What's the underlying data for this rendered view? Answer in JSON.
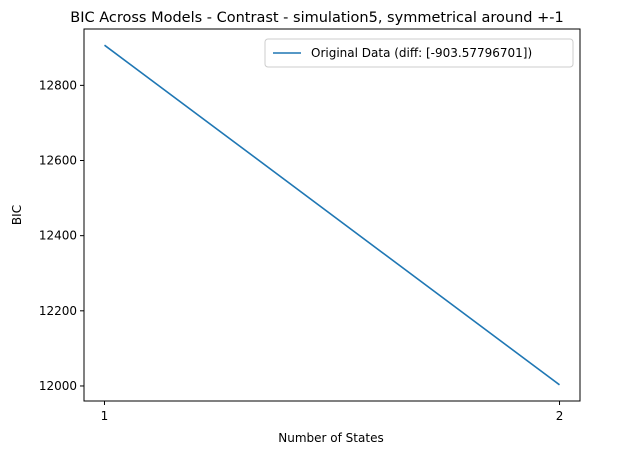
{
  "chart_data": {
    "type": "line",
    "title": "BIC Across Models - Contrast - simulation5, symmetrical around +-1",
    "xlabel": "Number of States",
    "ylabel": "BIC",
    "x": [
      1,
      2
    ],
    "xticks": [
      1,
      2
    ],
    "yticks": [
      12000,
      12200,
      12400,
      12600,
      12800
    ],
    "xlim": [
      0.955,
      2.045
    ],
    "ylim": [
      11960,
      12950
    ],
    "grid": false,
    "legend_position": "top-right",
    "series": [
      {
        "name": "Original Data (diff: [-903.57796701])",
        "color": "#1f77b4",
        "values": [
          12907,
          12003
        ]
      }
    ]
  }
}
